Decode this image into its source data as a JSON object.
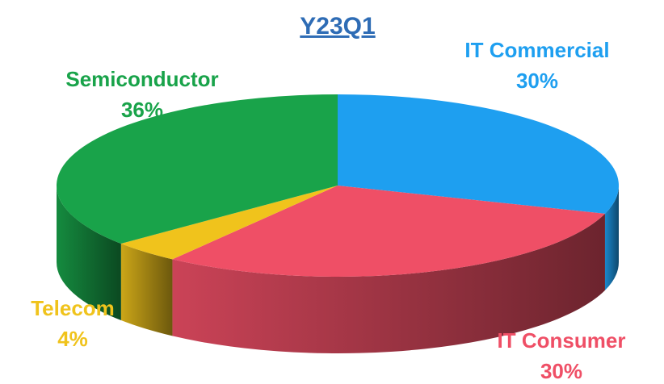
{
  "chart_data": {
    "type": "pie",
    "title": "Y23Q1",
    "categories": [
      "IT Commercial",
      "IT Consumer",
      "Telecom",
      "Semiconductor"
    ],
    "values": [
      30,
      30,
      4,
      36
    ],
    "value_labels": [
      "30%",
      "30%",
      "4%",
      "36%"
    ],
    "colors": [
      "#1e9ff0",
      "#ef4f66",
      "#f0c31c",
      "#19a34a"
    ]
  }
}
